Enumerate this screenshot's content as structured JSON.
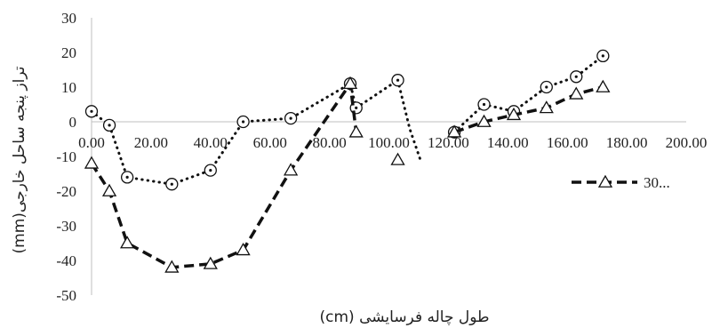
{
  "chart_data": {
    "type": "line",
    "title": "",
    "xlabel": "طول چاله فرسایشی (cm)",
    "ylabel": "تراز پنجه ساحل خارجی(mm)",
    "xlim": [
      0,
      200
    ],
    "ylim": [
      -50,
      30
    ],
    "x_ticks": [
      "0.00",
      "20.00",
      "40.00",
      "60.00",
      "80.00",
      "100.00",
      "120.00",
      "140.00",
      "160.00",
      "180.00",
      "200.00"
    ],
    "y_ticks": [
      "30",
      "20",
      "10",
      "0",
      "-10",
      "-20",
      "-30",
      "-40",
      "-50"
    ],
    "grid": false,
    "legend_position": "right",
    "series": [
      {
        "name": "",
        "line_style": "dotted",
        "marker": "circle-dot",
        "segments": [
          [
            [
              0,
              3
            ],
            [
              6,
              -1
            ],
            [
              12,
              -16
            ],
            [
              27,
              -18
            ],
            [
              40,
              -14
            ],
            [
              51,
              0
            ],
            [
              67,
              1
            ],
            [
              87,
              11
            ],
            [
              89,
              4
            ],
            [
              103,
              12
            ]
          ],
          [
            [
              122,
              -3
            ],
            [
              132,
              5
            ],
            [
              142,
              3
            ],
            [
              153,
              10
            ],
            [
              163,
              13
            ],
            [
              172,
              19
            ]
          ]
        ],
        "tail_points": [
          [
            107,
            -2
          ],
          [
            111,
            -12
          ]
        ]
      },
      {
        "name": "30...",
        "line_style": "dashed",
        "marker": "triangle",
        "segments": [
          [
            [
              0,
              -12
            ],
            [
              6,
              -20
            ],
            [
              12,
              -35
            ],
            [
              27,
              -42
            ],
            [
              40,
              -41
            ],
            [
              51,
              -37
            ],
            [
              67,
              -14
            ],
            [
              87,
              11
            ],
            [
              89,
              -3
            ]
          ],
          [
            [
              103,
              -11
            ]
          ],
          [
            [
              122,
              -3
            ],
            [
              132,
              0
            ],
            [
              142,
              2
            ],
            [
              153,
              4
            ],
            [
              163,
              8
            ],
            [
              172,
              10
            ]
          ]
        ]
      }
    ]
  }
}
